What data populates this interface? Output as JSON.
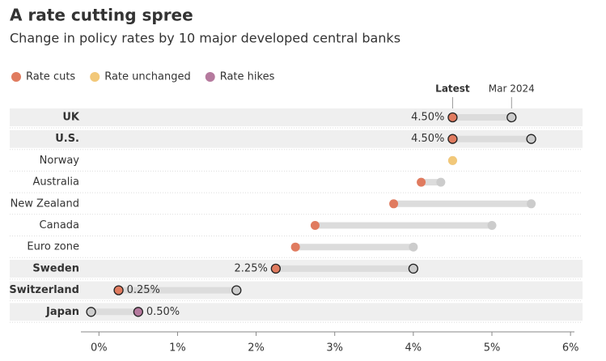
{
  "chart_data": {
    "type": "dumbbell",
    "title": "A rate cutting spree",
    "subtitle": "Change in policy rates by 10 major developed central banks",
    "legend": [
      {
        "name": "Rate cuts",
        "color": "#e07b5f"
      },
      {
        "name": "Rate unchanged",
        "color": "#f2c879"
      },
      {
        "name": "Rate hikes",
        "color": "#b57a9e"
      }
    ],
    "categories": [
      "UK",
      "U.S.",
      "Norway",
      "Australia",
      "New Zealand",
      "Canada",
      "Euro zone",
      "Sweden",
      "Switzerland",
      "Japan"
    ],
    "status": [
      0,
      0,
      1,
      0,
      0,
      0,
      0,
      0,
      0,
      2
    ],
    "highlighted": [
      true,
      true,
      false,
      false,
      false,
      false,
      false,
      true,
      true,
      true
    ],
    "series": [
      {
        "name": "Latest",
        "values": [
          4.5,
          4.5,
          4.5,
          4.1,
          3.75,
          2.75,
          2.5,
          2.25,
          0.25,
          0.5
        ],
        "value_labels": [
          "4.50%",
          "4.50%",
          null,
          null,
          null,
          null,
          null,
          "2.25%",
          "0.25%",
          "0.50%"
        ]
      },
      {
        "name": "Mar 2024",
        "color": "#cccccc",
        "values": [
          5.25,
          5.5,
          4.5,
          4.35,
          5.5,
          5.0,
          4.0,
          4.0,
          1.75,
          -0.1
        ]
      }
    ],
    "xlim": [
      -0.25,
      6.05
    ],
    "xticks": [
      {
        "value": 0,
        "label": "0%"
      },
      {
        "value": 1,
        "label": "1%"
      },
      {
        "value": 2,
        "label": "2%"
      },
      {
        "value": 3,
        "label": "3%"
      },
      {
        "value": 4,
        "label": "4%"
      },
      {
        "value": 5,
        "label": "5%"
      },
      {
        "value": 6,
        "label": "6%"
      }
    ]
  }
}
